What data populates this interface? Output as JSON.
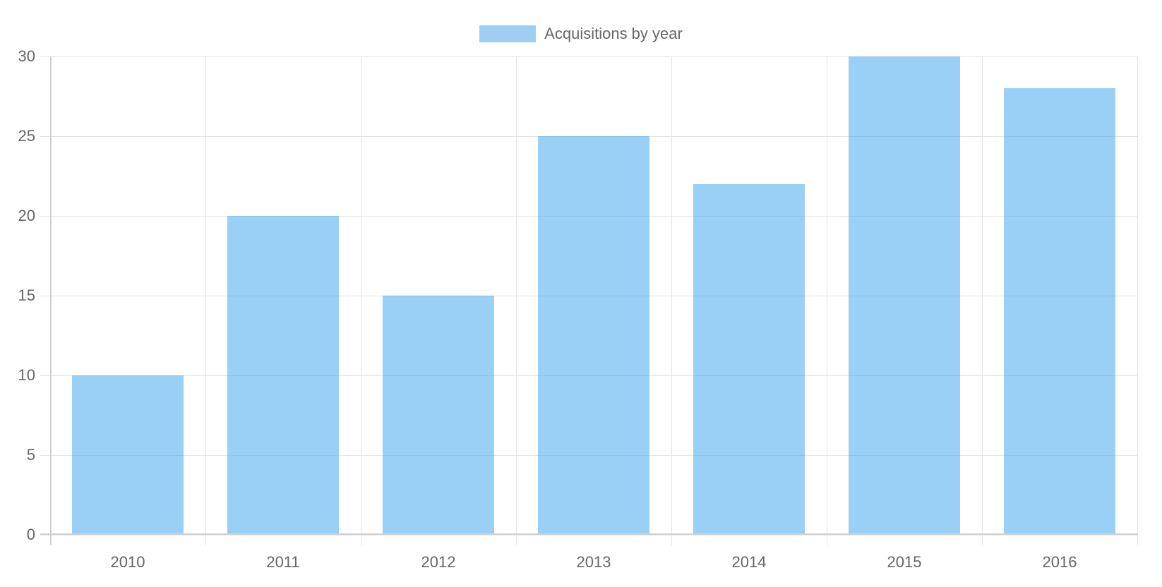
{
  "chart_data": {
    "type": "bar",
    "title": "",
    "xlabel": "",
    "ylabel": "",
    "categories": [
      "2010",
      "2011",
      "2012",
      "2013",
      "2014",
      "2015",
      "2016"
    ],
    "series": [
      {
        "name": "Acquisitions by year",
        "values": [
          10,
          20,
          15,
          25,
          22,
          30,
          28
        ],
        "color": "#9bcfF3"
      }
    ],
    "ylim": [
      0,
      30
    ],
    "yticks": [
      0,
      5,
      10,
      15,
      20,
      25,
      30
    ],
    "grid": true,
    "legend_position": "top"
  },
  "legend": {
    "label": "Acquisitions by year",
    "color": "#9ccff3"
  },
  "colors": {
    "bar_fill": "rgba(54,162,235,0.5)",
    "grid": "#e4e4e4",
    "axis": "#cfcfcf",
    "text": "#666666"
  }
}
